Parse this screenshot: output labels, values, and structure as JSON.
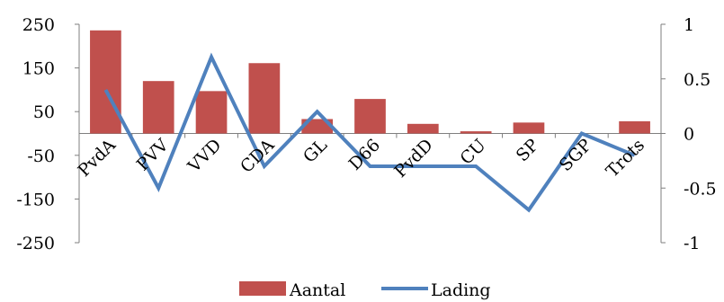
{
  "chart_data": {
    "type": "bar",
    "categories": [
      "PvdA",
      "PVV",
      "VVD",
      "CDA",
      "GL",
      "D66",
      "PvdD",
      "CU",
      "SP",
      "SGP",
      "Trots"
    ],
    "series": [
      {
        "name": "Aantal",
        "type": "bar",
        "axis": "left",
        "color": "#C0504D",
        "values": [
          236,
          120,
          97,
          161,
          33,
          79,
          22,
          5,
          25,
          0,
          28
        ]
      },
      {
        "name": "Lading",
        "type": "line",
        "axis": "right",
        "color": "#4F81BD",
        "values": [
          0.4,
          -0.5,
          0.7,
          -0.3,
          0.2,
          -0.3,
          -0.3,
          -0.3,
          -0.7,
          0.0,
          -0.2
        ]
      }
    ],
    "y_left": {
      "ylim": [
        -250,
        250
      ],
      "ticks": [
        250,
        150,
        50,
        -50,
        -150,
        -250
      ],
      "tick_labels": [
        "250",
        "150",
        "50",
        "-50",
        "-150",
        "-250"
      ]
    },
    "y_right": {
      "ylim": [
        -1,
        1
      ],
      "ticks": [
        1,
        0.5,
        0,
        -0.5,
        -1
      ],
      "tick_labels": [
        "1",
        "0.5",
        "0",
        "-0.5",
        "-1"
      ]
    },
    "grid": false,
    "legend": {
      "placement": "bottom",
      "entries": [
        "Aantal",
        "Lading"
      ]
    }
  }
}
